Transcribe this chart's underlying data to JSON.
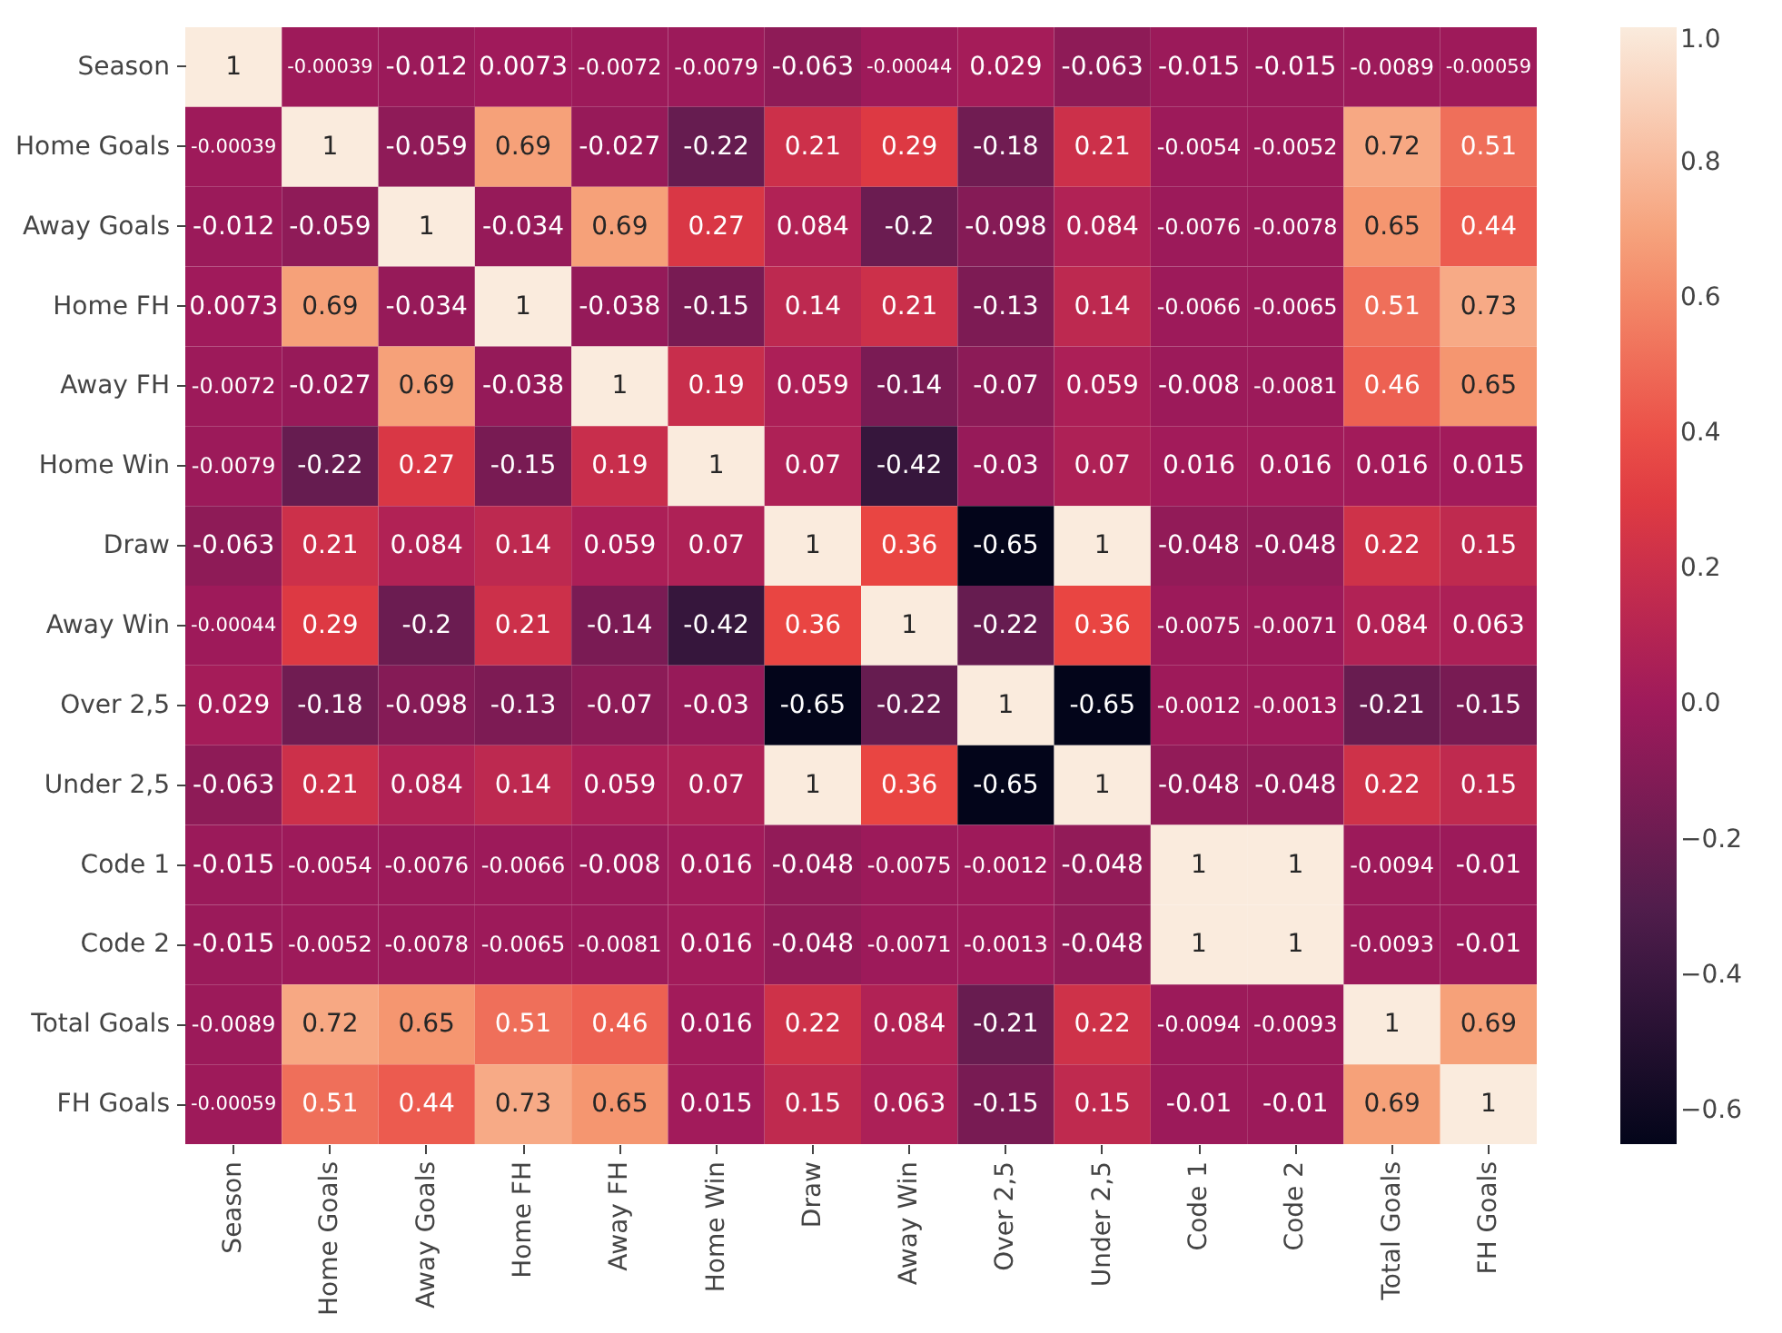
{
  "chart_data": {
    "type": "heatmap",
    "categories": [
      "Season",
      "Home Goals",
      "Away Goals",
      "Home FH",
      "Away FH",
      "Home Win",
      "Draw",
      "Away Win",
      "Over 2,5",
      "Under 2,5",
      "Code 1",
      "Code 2",
      "Total Goals",
      "FH Goals"
    ],
    "y_categories": [
      "Season",
      "Home Goals",
      "Away Goals",
      "Home FH",
      "Away FH",
      "Home Win",
      "Draw",
      "Away Win",
      "Over 2,5",
      "Under 2,5",
      "Code 1",
      "Code 2",
      "Total Goals",
      "FH Goals"
    ],
    "cells": [
      [
        1,
        -0.00039,
        -0.012,
        0.0073,
        -0.0072,
        -0.0079,
        -0.063,
        -0.00044,
        0.029,
        -0.063,
        -0.015,
        -0.015,
        -0.0089,
        -0.00059
      ],
      [
        -0.00039,
        1,
        -0.059,
        0.69,
        -0.027,
        -0.22,
        0.21,
        0.29,
        -0.18,
        0.21,
        -0.0054,
        -0.0052,
        0.72,
        0.51
      ],
      [
        -0.012,
        -0.059,
        1,
        -0.034,
        0.69,
        0.27,
        0.084,
        -0.2,
        -0.098,
        0.084,
        -0.0076,
        -0.0078,
        0.65,
        0.44
      ],
      [
        0.0073,
        0.69,
        -0.034,
        1,
        -0.038,
        -0.15,
        0.14,
        0.21,
        -0.13,
        0.14,
        -0.0066,
        -0.0065,
        0.51,
        0.73
      ],
      [
        -0.0072,
        -0.027,
        0.69,
        -0.038,
        1,
        0.19,
        0.059,
        -0.14,
        -0.07,
        0.059,
        -0.008,
        -0.0081,
        0.46,
        0.65
      ],
      [
        -0.0079,
        -0.22,
        0.27,
        -0.15,
        0.19,
        1,
        0.07,
        -0.42,
        -0.03,
        0.07,
        0.016,
        0.016,
        0.016,
        0.015
      ],
      [
        -0.063,
        0.21,
        0.084,
        0.14,
        0.059,
        0.07,
        1,
        0.36,
        -0.65,
        1,
        -0.048,
        -0.048,
        0.22,
        0.15
      ],
      [
        -0.00044,
        0.29,
        -0.2,
        0.21,
        -0.14,
        -0.42,
        0.36,
        1,
        -0.22,
        0.36,
        -0.0075,
        -0.0071,
        0.084,
        0.063
      ],
      [
        0.029,
        -0.18,
        -0.098,
        -0.13,
        -0.07,
        -0.03,
        -0.65,
        -0.22,
        1,
        -0.65,
        -0.0012,
        -0.0013,
        -0.21,
        -0.15
      ],
      [
        -0.063,
        0.21,
        0.084,
        0.14,
        0.059,
        0.07,
        1,
        0.36,
        -0.65,
        1,
        -0.048,
        -0.048,
        0.22,
        0.15
      ],
      [
        -0.015,
        -0.0054,
        -0.0076,
        -0.0066,
        -0.008,
        0.016,
        -0.048,
        -0.0075,
        -0.0012,
        -0.048,
        1,
        1,
        -0.0094,
        -0.01
      ],
      [
        -0.015,
        -0.0052,
        -0.0078,
        -0.0065,
        -0.0081,
        0.016,
        -0.048,
        -0.0071,
        -0.0013,
        -0.048,
        1,
        1,
        -0.0093,
        -0.01
      ],
      [
        -0.0089,
        0.72,
        0.65,
        0.51,
        0.46,
        0.016,
        0.22,
        0.084,
        -0.21,
        0.22,
        -0.0094,
        -0.0093,
        1,
        0.69
      ],
      [
        -0.00059,
        0.51,
        0.44,
        0.73,
        0.65,
        0.015,
        0.15,
        0.063,
        -0.15,
        0.15,
        -0.01,
        -0.01,
        0.69,
        1
      ]
    ],
    "clim": [
      -0.65,
      1
    ],
    "cticks": [
      {
        "value": -0.6,
        "label": "−0.6"
      },
      {
        "value": -0.4,
        "label": "−0.4"
      },
      {
        "value": -0.2,
        "label": "−0.2"
      },
      {
        "value": 0,
        "label": "0.0"
      },
      0.2,
      0.4,
      0.6,
      0.8,
      {
        "value": 1,
        "label": "1.0"
      }
    ],
    "data_labels": true
  }
}
